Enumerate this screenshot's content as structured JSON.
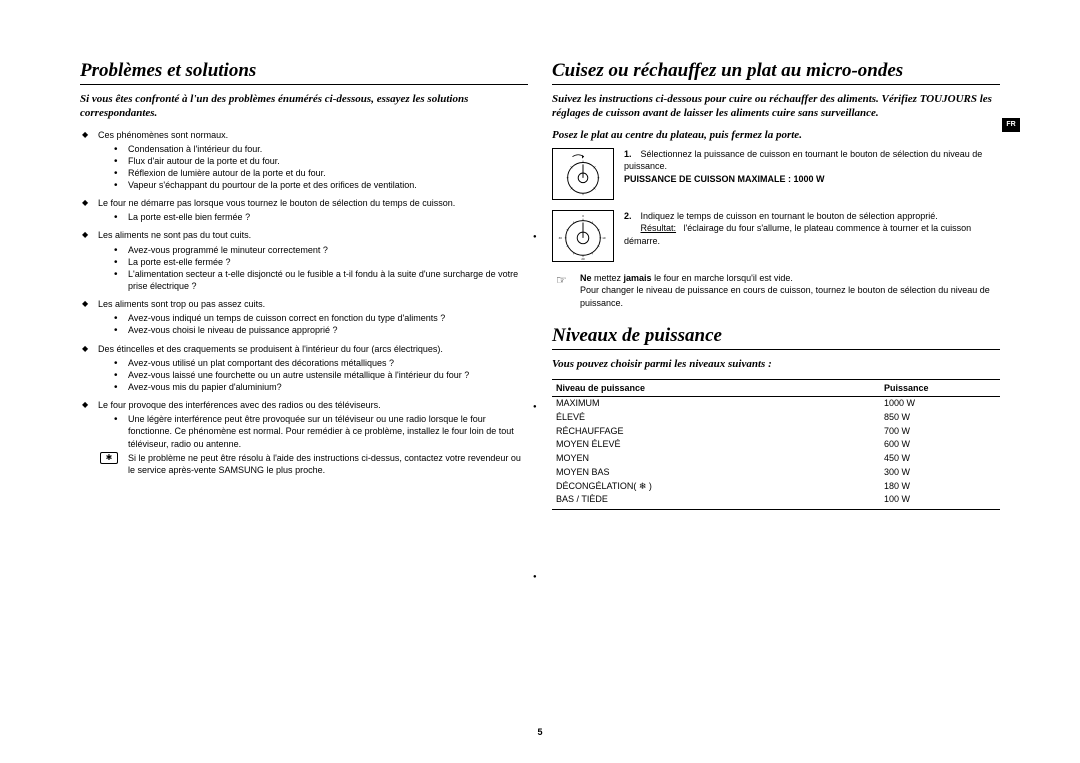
{
  "lang_tab": "FR",
  "page_number": "5",
  "left": {
    "heading": "Problèmes et solutions",
    "intro": "Si vous êtes confronté à l'un des problèmes énumérés ci-dessous, essayez les solutions correspondantes.",
    "problems": [
      {
        "title": "Ces phénomènes sont normaux.",
        "items": [
          "Condensation à l'intérieur du four.",
          "Flux d'air autour de la porte et du four.",
          "Réflexion de lumière autour de la porte et du four.",
          "Vapeur s'échappant du pourtour de la porte et des orifices de ventilation."
        ]
      },
      {
        "title": "Le four ne démarre pas lorsque vous tournez le bouton de sélection du temps de cuisson.",
        "items": [
          "La porte est-elle bien fermée ?"
        ]
      },
      {
        "title": "Les aliments ne sont pas du tout cuits.",
        "items": [
          "Avez-vous programmé le minuteur correctement ?",
          "La porte est-elle fermée ?",
          "L'alimentation secteur a t-elle disjoncté ou le fusible a t-il fondu à la suite d'une surcharge de votre prise électrique ?"
        ]
      },
      {
        "title": "Les aliments sont trop ou pas assez cuits.",
        "items": [
          "Avez-vous indiqué un temps de cuisson correct en fonction du type d'aliments ?",
          "Avez-vous choisi le niveau de puissance approprié ?"
        ]
      },
      {
        "title": "Des étincelles et des craquements se produisent à l'intérieur du four (arcs électriques).",
        "items": [
          "Avez-vous utilisé un plat comportant des décorations métalliques ?",
          "Avez-vous laissé une fourchette ou un autre ustensile métallique à l'intérieur du four ?",
          "Avez-vous mis du papier d'aluminium?"
        ]
      },
      {
        "title": "Le four provoque des interférences avec des radios ou des téléviseurs.",
        "items": [
          "Une légère interférence peut être provoquée sur un téléviseur ou une radio lorsque le four fonctionne. Ce phénomène est normal. Pour remédier à ce problème, installez le four loin de tout téléviseur, radio ou antenne."
        ],
        "note": "Si le problème ne peut être résolu à l'aide des instructions ci-dessus, contactez votre revendeur ou le service après-vente SAMSUNG le plus proche."
      }
    ]
  },
  "right": {
    "heading1": "Cuisez ou réchauffez un plat au micro-ondes",
    "intro1": "Suivez les instructions ci-dessous pour cuire ou réchauffer des aliments. Vérifiez TOUJOURS les réglages de cuisson avant de laisser les aliments cuire sans surveillance.",
    "sub1": "Posez le plat au centre du plateau, puis fermez la porte.",
    "step1_num": "1.",
    "step1_text": "Sélectionnez la puissance de cuisson en tournant le bouton de sélection du niveau de puissance.",
    "step1_bold": "PUISSANCE DE CUISSON MAXIMALE : 1000 W",
    "step2_num": "2.",
    "step2_text": "Indiquez le temps de cuisson en tournant le bouton de sélection approprié.",
    "step2_result_label": "Résultat:",
    "step2_result_text": "l'éclairage du four s'allume, le plateau commence à tourner et la cuisson démarre.",
    "hand_note_bold_pre": "Ne",
    "hand_note_bold_mid": "jamais",
    "hand_note_text1": " mettez ",
    "hand_note_text2": " le four en marche lorsqu'il est vide.",
    "hand_note_line2": "Pour changer le niveau de puissance en cours de cuisson, tournez le bouton de sélection du niveau de puissance.",
    "heading2": "Niveaux de puissance",
    "intro2": "Vous pouvez choisir parmi les niveaux suivants :",
    "table": {
      "col1": "Niveau de puissance",
      "col2": "Puissance",
      "rows": [
        [
          "MAXIMUM",
          "1000 W"
        ],
        [
          "ÉLEVÉ",
          "850 W"
        ],
        [
          "RÉCHAUFFAGE",
          "700 W"
        ],
        [
          "MOYEN ÉLEVÉ",
          "600 W"
        ],
        [
          "MOYEN",
          "450 W"
        ],
        [
          "MOYEN BAS",
          "300 W"
        ],
        [
          "DÉCONGÉLATION( ❄ )",
          "180 W"
        ],
        [
          "BAS / TIÈDE",
          "100 W"
        ]
      ]
    }
  }
}
